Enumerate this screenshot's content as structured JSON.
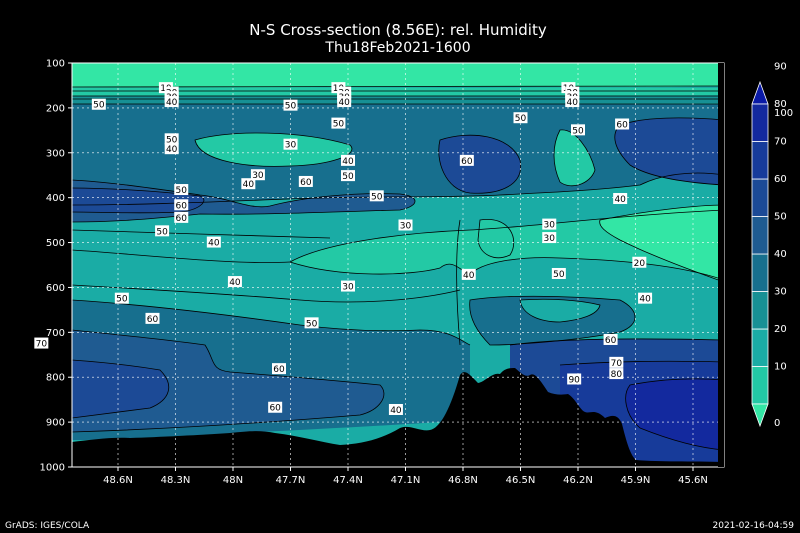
{
  "chart_data": {
    "type": "heatmap",
    "title": "N-S Cross-section (8.56E): rel. Humidity",
    "subtitle": "Thu18Feb2021-1600",
    "x_ticks": [
      "48.6N",
      "48.3N",
      "48N",
      "47.7N",
      "47.4N",
      "47.1N",
      "46.8N",
      "46.5N",
      "46.2N",
      "45.9N",
      "45.6N"
    ],
    "y_ticks": [
      "100",
      "200",
      "300",
      "400",
      "500",
      "600",
      "700",
      "800",
      "900",
      "1000"
    ],
    "ylim": [
      100,
      1000
    ],
    "grid": true,
    "colorbar": {
      "levels": [
        "0",
        "10",
        "20",
        "30",
        "40",
        "50",
        "60",
        "70",
        "80",
        "90",
        "100"
      ],
      "colors": [
        "#33e6a5",
        "#23c9a5",
        "#1aaca5",
        "#179094",
        "#176f8e",
        "#1f5b91",
        "#1c4a96",
        "#173b9a",
        "#13299e",
        "#0a1aa6"
      ],
      "placement": "right"
    },
    "contour_labels": [
      {
        "text": "10",
        "lat": 48.35,
        "p": 156
      },
      {
        "text": "20",
        "lat": 48.32,
        "p": 166
      },
      {
        "text": "30",
        "lat": 48.32,
        "p": 176
      },
      {
        "text": "40",
        "lat": 48.32,
        "p": 187
      },
      {
        "text": "10",
        "lat": 47.45,
        "p": 156
      },
      {
        "text": "20",
        "lat": 47.42,
        "p": 166
      },
      {
        "text": "30",
        "lat": 47.42,
        "p": 176
      },
      {
        "text": "40",
        "lat": 47.42,
        "p": 187
      },
      {
        "text": "10",
        "lat": 46.25,
        "p": 156
      },
      {
        "text": "20",
        "lat": 46.23,
        "p": 166
      },
      {
        "text": "30",
        "lat": 46.23,
        "p": 176
      },
      {
        "text": "40",
        "lat": 46.23,
        "p": 187
      },
      {
        "text": "50",
        "lat": 48.7,
        "p": 193
      },
      {
        "text": "50",
        "lat": 47.7,
        "p": 195
      },
      {
        "text": "50",
        "lat": 47.45,
        "p": 235
      },
      {
        "text": "50",
        "lat": 46.5,
        "p": 223
      },
      {
        "text": "50",
        "lat": 46.2,
        "p": 250
      },
      {
        "text": "60",
        "lat": 45.97,
        "p": 237
      },
      {
        "text": "50",
        "lat": 48.32,
        "p": 270
      },
      {
        "text": "40",
        "lat": 48.32,
        "p": 292
      },
      {
        "text": "30",
        "lat": 47.7,
        "p": 282
      },
      {
        "text": "40",
        "lat": 47.4,
        "p": 318
      },
      {
        "text": "60",
        "lat": 46.78,
        "p": 318
      },
      {
        "text": "30",
        "lat": 47.87,
        "p": 350
      },
      {
        "text": "40",
        "lat": 47.92,
        "p": 370
      },
      {
        "text": "50",
        "lat": 47.4,
        "p": 352
      },
      {
        "text": "60",
        "lat": 47.62,
        "p": 365
      },
      {
        "text": "50",
        "lat": 48.27,
        "p": 383
      },
      {
        "text": "60",
        "lat": 48.27,
        "p": 417
      },
      {
        "text": "60",
        "lat": 48.27,
        "p": 445
      },
      {
        "text": "50",
        "lat": 47.25,
        "p": 397
      },
      {
        "text": "40",
        "lat": 45.98,
        "p": 403
      },
      {
        "text": "50",
        "lat": 48.37,
        "p": 475
      },
      {
        "text": "40",
        "lat": 48.1,
        "p": 500
      },
      {
        "text": "30",
        "lat": 47.1,
        "p": 462
      },
      {
        "text": "30",
        "lat": 46.35,
        "p": 460
      },
      {
        "text": "30",
        "lat": 46.35,
        "p": 490
      },
      {
        "text": "20",
        "lat": 45.88,
        "p": 545
      },
      {
        "text": "40",
        "lat": 47.99,
        "p": 588
      },
      {
        "text": "30",
        "lat": 47.4,
        "p": 598
      },
      {
        "text": "40",
        "lat": 46.77,
        "p": 572
      },
      {
        "text": "50",
        "lat": 46.3,
        "p": 570
      },
      {
        "text": "40",
        "lat": 45.85,
        "p": 625
      },
      {
        "text": "50",
        "lat": 48.58,
        "p": 625
      },
      {
        "text": "60",
        "lat": 48.42,
        "p": 670
      },
      {
        "text": "50",
        "lat": 47.59,
        "p": 680
      },
      {
        "text": "70",
        "lat": 49.0,
        "p": 725
      },
      {
        "text": "60",
        "lat": 46.03,
        "p": 717
      },
      {
        "text": "60",
        "lat": 47.76,
        "p": 782
      },
      {
        "text": "70",
        "lat": 46.0,
        "p": 768
      },
      {
        "text": "80",
        "lat": 46.0,
        "p": 793
      },
      {
        "text": "90",
        "lat": 46.22,
        "p": 805
      },
      {
        "text": "60",
        "lat": 47.78,
        "p": 868
      },
      {
        "text": "40",
        "lat": 47.15,
        "p": 873
      }
    ],
    "footer_left": "GrADS: IGES/COLA",
    "footer_right": "2021-02-16-04:59"
  }
}
